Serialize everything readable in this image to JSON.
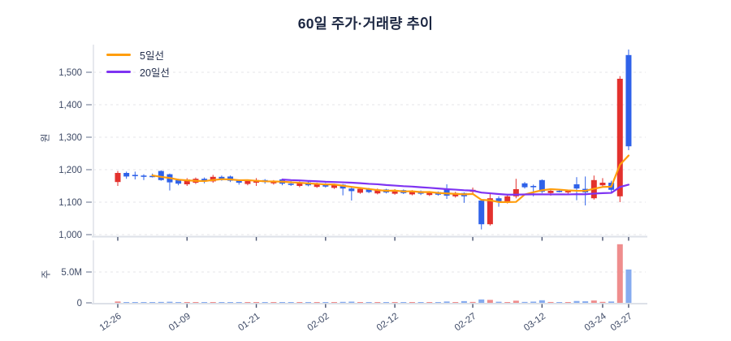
{
  "chart_data": {
    "type": "candlestick",
    "title": "60일 주가·거래량 추이",
    "legend": [
      {
        "label": "5일선",
        "color": "#ff9d0d",
        "period": 5
      },
      {
        "label": "20일선",
        "color": "#7e33f2",
        "period": 20
      }
    ],
    "price_axis": {
      "label": "원",
      "ticks": [
        1000,
        1100,
        1200,
        1300,
        1400,
        1500
      ]
    },
    "volume_axis": {
      "label": "주",
      "ticks": [
        {
          "value": 0,
          "label": "0"
        },
        {
          "value": 5,
          "label": "5.0M"
        }
      ]
    },
    "x_ticks": [
      {
        "label": "12-26",
        "index": 0
      },
      {
        "label": "01-09",
        "index": 8
      },
      {
        "label": "01-21",
        "index": 16
      },
      {
        "label": "02-02",
        "index": 24
      },
      {
        "label": "02-12",
        "index": 32
      },
      {
        "label": "02-27",
        "index": 41
      },
      {
        "label": "03-12",
        "index": 49
      },
      {
        "label": "03-24",
        "index": 56
      },
      {
        "label": "03-27",
        "index": 59
      }
    ],
    "colors": {
      "up": "#e3312d",
      "down": "#2f62e9",
      "vol_up": "#ef8d8d",
      "vol_down": "#86abef",
      "ma5": "#ff9d0d",
      "ma20": "#7e33f2",
      "grid": "#e4e6ea",
      "spine": "#dde1e8",
      "tick_text": "#3e4a66",
      "x_tick_mark": "#4a5470",
      "title_text": "#1c2742"
    },
    "candles_note": "each candle = [open, high, low, close, volume_millions]; close>=open drawn red (up), else blue (down)",
    "candles": [
      [
        1162,
        1196,
        1150,
        1190,
        0.22
      ],
      [
        1190,
        1194,
        1172,
        1179,
        0.12
      ],
      [
        1184,
        1194,
        1170,
        1183,
        0.08
      ],
      [
        1182,
        1186,
        1168,
        1180,
        0.06
      ],
      [
        1181,
        1188,
        1176,
        1180,
        0.05
      ],
      [
        1196,
        1198,
        1166,
        1168,
        0.15
      ],
      [
        1186,
        1188,
        1136,
        1161,
        0.18
      ],
      [
        1168,
        1172,
        1152,
        1157,
        0.1
      ],
      [
        1155,
        1174,
        1150,
        1170,
        0.12
      ],
      [
        1160,
        1176,
        1156,
        1172,
        0.09
      ],
      [
        1172,
        1176,
        1158,
        1164,
        0.07
      ],
      [
        1164,
        1184,
        1160,
        1178,
        0.1
      ],
      [
        1178,
        1182,
        1166,
        1170,
        0.08
      ],
      [
        1179,
        1182,
        1162,
        1166,
        0.09
      ],
      [
        1166,
        1170,
        1154,
        1160,
        0.07
      ],
      [
        1156,
        1168,
        1152,
        1165,
        0.12
      ],
      [
        1160,
        1174,
        1150,
        1168,
        0.1
      ],
      [
        1168,
        1171,
        1157,
        1162,
        0.08
      ],
      [
        1158,
        1168,
        1154,
        1164,
        0.07
      ],
      [
        1170,
        1172,
        1152,
        1157,
        0.06
      ],
      [
        1157,
        1165,
        1150,
        1155,
        0.09
      ],
      [
        1150,
        1164,
        1146,
        1161,
        0.11
      ],
      [
        1161,
        1163,
        1149,
        1152,
        0.07
      ],
      [
        1147,
        1160,
        1144,
        1157,
        0.1
      ],
      [
        1157,
        1159,
        1145,
        1148,
        0.12
      ],
      [
        1144,
        1157,
        1141,
        1154,
        0.08
      ],
      [
        1154,
        1156,
        1121,
        1142,
        0.16
      ],
      [
        1142,
        1146,
        1105,
        1134,
        0.2
      ],
      [
        1129,
        1144,
        1126,
        1141,
        0.09
      ],
      [
        1141,
        1144,
        1128,
        1131,
        0.07
      ],
      [
        1127,
        1142,
        1124,
        1139,
        0.08
      ],
      [
        1139,
        1141,
        1127,
        1130,
        0.06
      ],
      [
        1126,
        1140,
        1123,
        1137,
        0.1
      ],
      [
        1137,
        1139,
        1125,
        1128,
        0.07
      ],
      [
        1124,
        1137,
        1121,
        1134,
        0.06
      ],
      [
        1134,
        1136,
        1122,
        1126,
        0.08
      ],
      [
        1122,
        1134,
        1119,
        1131,
        0.05
      ],
      [
        1131,
        1133,
        1120,
        1123,
        0.07
      ],
      [
        1140,
        1155,
        1110,
        1120,
        0.22
      ],
      [
        1118,
        1132,
        1114,
        1128,
        0.1
      ],
      [
        1128,
        1130,
        1098,
        1118,
        0.28
      ],
      [
        1132,
        1145,
        1125,
        1138,
        0.15
      ],
      [
        1105,
        1108,
        1016,
        1032,
        0.55
      ],
      [
        1032,
        1126,
        1028,
        1112,
        0.48
      ],
      [
        1112,
        1118,
        1086,
        1102,
        0.18
      ],
      [
        1100,
        1124,
        1096,
        1118,
        0.12
      ],
      [
        1118,
        1172,
        1112,
        1140,
        0.35
      ],
      [
        1158,
        1162,
        1142,
        1146,
        0.15
      ],
      [
        1150,
        1154,
        1118,
        1147,
        0.2
      ],
      [
        1168,
        1170,
        1128,
        1132,
        0.42
      ],
      [
        1128,
        1138,
        1120,
        1135,
        0.14
      ],
      [
        1135,
        1139,
        1130,
        1133,
        0.1
      ],
      [
        1130,
        1137,
        1126,
        1134,
        0.08
      ],
      [
        1155,
        1177,
        1106,
        1142,
        0.3
      ],
      [
        1141,
        1179,
        1090,
        1130,
        0.25
      ],
      [
        1112,
        1182,
        1108,
        1168,
        0.38
      ],
      [
        1152,
        1174,
        1146,
        1160,
        0.16
      ],
      [
        1160,
        1166,
        1128,
        1138,
        0.22
      ],
      [
        1118,
        1488,
        1100,
        1480,
        9.5
      ],
      [
        1553,
        1570,
        1260,
        1272,
        5.4
      ]
    ]
  }
}
